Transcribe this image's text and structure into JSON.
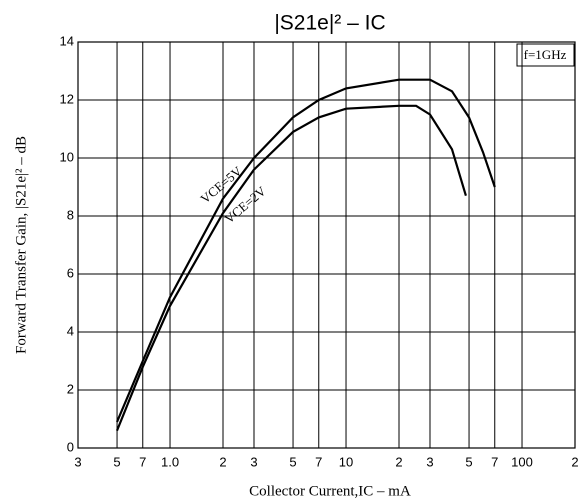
{
  "chart_data": {
    "type": "line",
    "title": "|S21e|² – IC",
    "xlabel": "Collector Current,IC – mA",
    "ylabel": "Forward Transfer Gain, |S21e|² – dB",
    "annotation": "f=1GHz",
    "xscale": "log",
    "grid": true,
    "xlim": [
      0.3,
      200
    ],
    "ylim": [
      0,
      14
    ],
    "xticks": [
      {
        "value": 0.3,
        "label": "3"
      },
      {
        "value": 0.5,
        "label": "5"
      },
      {
        "value": 0.7,
        "label": "7"
      },
      {
        "value": 1,
        "label": "1.0"
      },
      2,
      3,
      5,
      7,
      10,
      {
        "value": 20,
        "label": "2"
      },
      {
        "value": 30,
        "label": "3"
      },
      {
        "value": 50,
        "label": "5"
      },
      {
        "value": 70,
        "label": "7"
      },
      100,
      {
        "value": 200,
        "label": "2"
      }
    ],
    "yticks": [
      0,
      2,
      4,
      6,
      8,
      10,
      12,
      14
    ],
    "series": [
      {
        "name": "VCE=5V",
        "color": "#000000",
        "x": [
          0.5,
          0.7,
          1,
          2,
          3,
          5,
          7,
          10,
          20,
          30,
          40,
          50,
          60,
          70
        ],
        "values": [
          0.9,
          3.0,
          5.2,
          8.6,
          10.0,
          11.4,
          12.0,
          12.4,
          12.7,
          12.7,
          12.3,
          11.4,
          10.2,
          9.0
        ]
      },
      {
        "name": "VCE=2V",
        "color": "#000000",
        "x": [
          0.5,
          0.7,
          1,
          2,
          3,
          5,
          7,
          10,
          20,
          25,
          30,
          40,
          48
        ],
        "values": [
          0.6,
          2.8,
          4.9,
          8.1,
          9.6,
          10.9,
          11.4,
          11.7,
          11.8,
          11.8,
          11.5,
          10.3,
          8.7
        ]
      }
    ]
  }
}
